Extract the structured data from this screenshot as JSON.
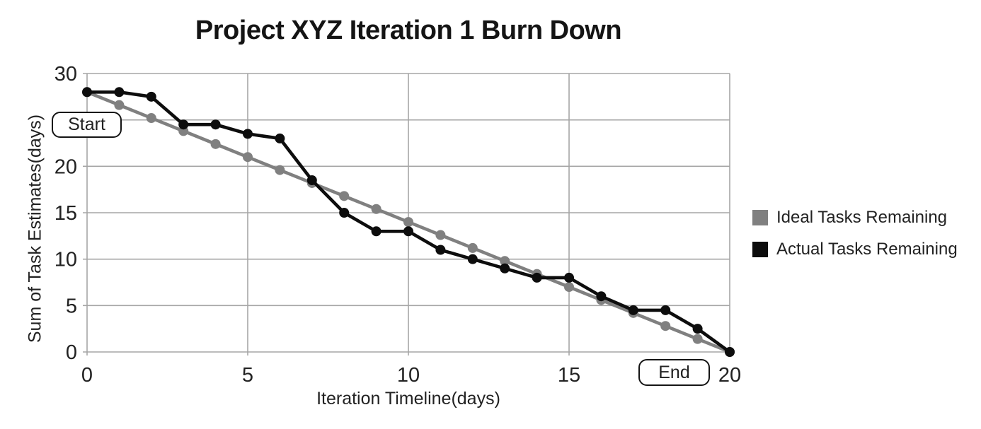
{
  "chart_data": {
    "type": "line",
    "title": "Project XYZ Iteration 1 Burn Down",
    "xlabel": "Iteration Timeline(days)",
    "ylabel": "Sum of Task Estimates(days)",
    "x": [
      0,
      1,
      2,
      3,
      4,
      5,
      6,
      7,
      8,
      9,
      10,
      11,
      12,
      13,
      14,
      15,
      16,
      17,
      18,
      19,
      20
    ],
    "series": [
      {
        "name": "Ideal Tasks Remaining",
        "color": "#808080",
        "values": [
          28,
          26.6,
          25.2,
          23.8,
          22.4,
          21,
          19.6,
          18.2,
          16.8,
          15.4,
          14,
          12.6,
          11.2,
          9.8,
          8.4,
          7,
          5.6,
          4.2,
          2.8,
          1.4,
          0
        ]
      },
      {
        "name": "Actual Tasks Remaining",
        "color": "#0d0d0d",
        "values": [
          28,
          28,
          27.5,
          24.5,
          24.5,
          23.5,
          23,
          18.5,
          15,
          13,
          13,
          11,
          10,
          9,
          8,
          8,
          6,
          4.5,
          4.5,
          2.5,
          0
        ]
      }
    ],
    "xlim": [
      0,
      20
    ],
    "ylim": [
      0,
      30
    ],
    "xticks": [
      0,
      5,
      10,
      15,
      20
    ],
    "yticks": [
      0,
      5,
      10,
      15,
      20,
      25,
      30
    ],
    "grid": true,
    "legend_position": "right",
    "annotations": [
      {
        "label": "Start",
        "x": 0,
        "y": 28
      },
      {
        "label": "End",
        "x": 20,
        "y": 0
      }
    ]
  },
  "colors": {
    "grid": "#a6a6a6",
    "axis_text": "#222222",
    "title_text": "#141414",
    "background": "#ffffff"
  }
}
